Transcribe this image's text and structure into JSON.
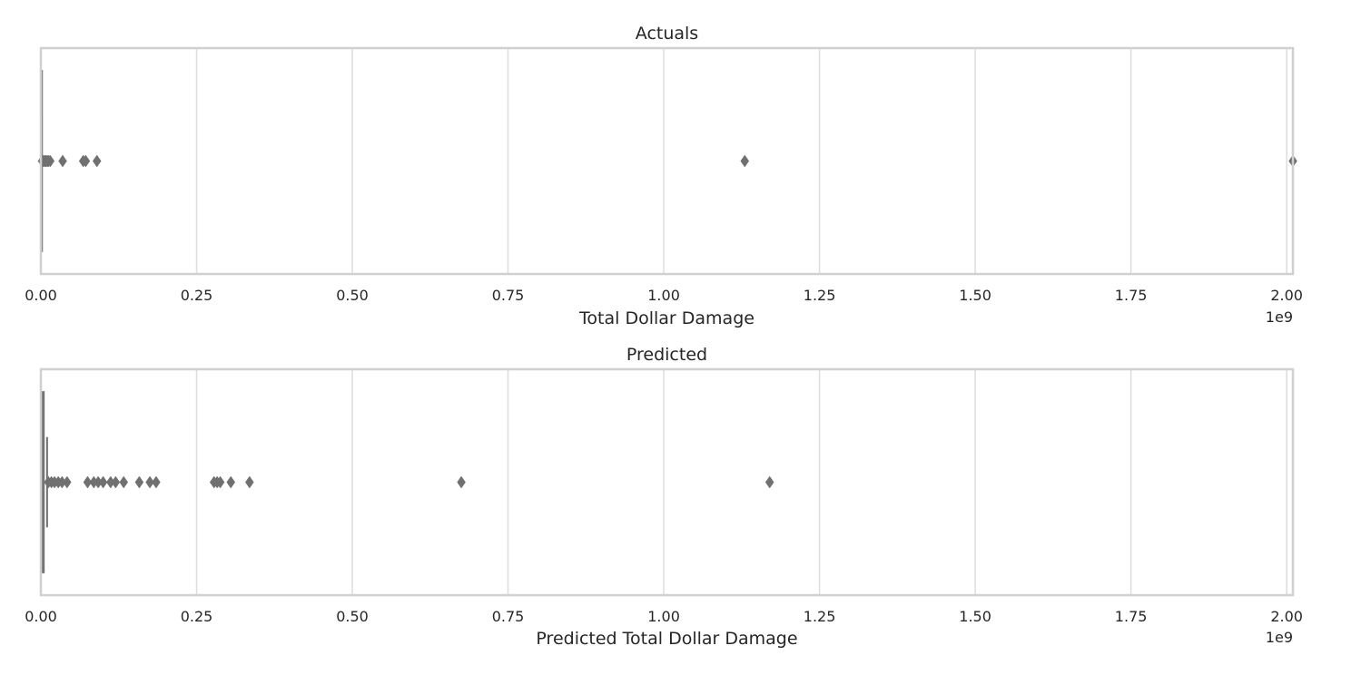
{
  "chart_data": [
    {
      "type": "box",
      "orientation": "horizontal",
      "title": "Actuals",
      "xlabel": "Total Dollar Damage",
      "offset_label": "1e9",
      "xlim": [
        0,
        2010000000
      ],
      "ticks": [
        0,
        250000000,
        500000000,
        750000000,
        1000000000,
        1250000000,
        1500000000,
        1750000000,
        2000000000
      ],
      "tick_labels": [
        "0.00",
        "0.25",
        "0.50",
        "0.75",
        "1.00",
        "1.25",
        "1.50",
        "1.75",
        "2.00"
      ],
      "grid": true,
      "box": {
        "q1": 0,
        "median": 200000,
        "q3": 1000000,
        "whisker_low": 0,
        "whisker_high": 1500000,
        "color": "#dddddd"
      },
      "outliers": [
        2000000,
        4000000,
        6000000,
        8000000,
        10000000,
        12000000,
        15000000,
        35000000,
        68000000,
        72000000,
        90000000,
        1130000000,
        2010000000
      ],
      "outlier_color": "#707070"
    },
    {
      "type": "box",
      "orientation": "horizontal",
      "title": "Predicted",
      "xlabel": "Predicted Total Dollar Damage",
      "offset_label": "1e9",
      "xlim": [
        0,
        2010000000
      ],
      "ticks": [
        0,
        250000000,
        500000000,
        750000000,
        1000000000,
        1250000000,
        1500000000,
        1750000000,
        2000000000
      ],
      "tick_labels": [
        "0.00",
        "0.25",
        "0.50",
        "0.75",
        "1.00",
        "1.25",
        "1.50",
        "1.75",
        "2.00"
      ],
      "grid": true,
      "box": {
        "q1": 600000,
        "median": 2500000,
        "q3": 5000000,
        "whisker_low": 0,
        "whisker_high": 10000000,
        "color": "#90d890"
      },
      "outliers": [
        12000000,
        17000000,
        22000000,
        28000000,
        34000000,
        42000000,
        75000000,
        85000000,
        92000000,
        100000000,
        112000000,
        120000000,
        133000000,
        158000000,
        175000000,
        185000000,
        278000000,
        283000000,
        288000000,
        305000000,
        335000000,
        675000000,
        1170000000
      ],
      "outlier_color": "#707070"
    }
  ]
}
